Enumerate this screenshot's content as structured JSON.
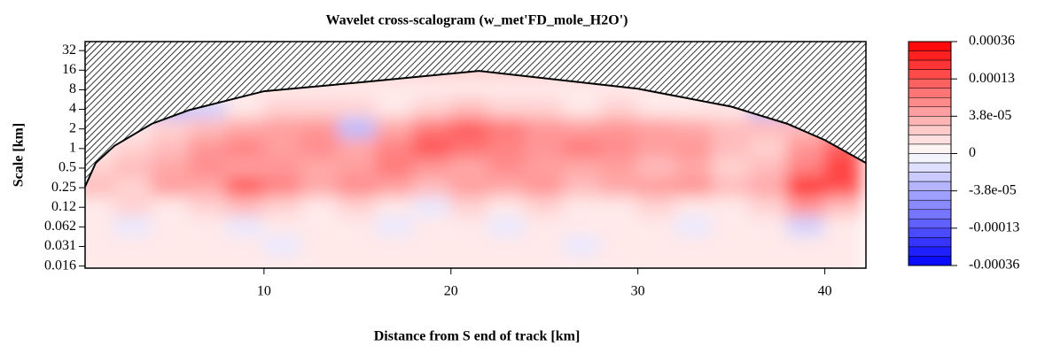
{
  "chart_data": {
    "type": "heatmap",
    "title": "Wavelet cross-scalogram (w_met'FD_mole_H2O')",
    "xlabel": "Distance from S end of track [km]",
    "ylabel": "Scale [km]",
    "log_y": true,
    "xlim": [
      0.43,
      42.2
    ],
    "xticks": [
      10,
      20,
      30,
      40
    ],
    "ylim": [
      0.0145,
      44
    ],
    "yticks": [
      32,
      16,
      8,
      4,
      2,
      1,
      0.5,
      0.25,
      {
        "value": 0.125,
        "label": "0.12"
      },
      {
        "value": 0.0625,
        "label": "0.062"
      },
      {
        "value": 0.03125,
        "label": "0.031"
      },
      {
        "value": 0.015625,
        "label": "0.016"
      }
    ],
    "x": [
      1,
      3,
      5,
      7,
      9,
      11,
      13,
      15,
      17,
      19,
      21,
      23,
      25,
      27,
      29,
      31,
      33,
      35,
      37,
      39,
      41
    ],
    "scales": [
      32,
      16,
      8,
      4,
      2,
      1,
      0.5,
      0.25,
      0.125,
      0.0625,
      0.03125,
      0.015625
    ],
    "z": [
      [
        2e-05,
        2e-05,
        2e-05,
        2e-05,
        2e-05,
        2e-05,
        2e-05,
        2e-05,
        2e-05,
        2e-05,
        2e-05,
        2e-05,
        2e-05,
        2e-05,
        2e-05,
        2e-05,
        2e-05,
        2e-05,
        2e-05,
        2e-05,
        2e-05
      ],
      [
        2e-05,
        2e-05,
        2e-05,
        2e-05,
        2e-05,
        2e-05,
        2e-05,
        2e-05,
        2e-05,
        2e-05,
        2e-05,
        2e-05,
        2e-05,
        2e-05,
        2e-05,
        2e-05,
        2e-05,
        2e-05,
        2e-05,
        2e-05,
        2e-05
      ],
      [
        1e-05,
        1e-05,
        1e-05,
        1e-05,
        1e-05,
        1e-05,
        1e-05,
        1e-05,
        1e-05,
        1e-05,
        1e-05,
        1e-05,
        1e-05,
        1e-05,
        1e-05,
        1e-05,
        1e-05,
        2e-05,
        3e-05,
        3e-05,
        3e-05
      ],
      [
        2e-05,
        -2e-05,
        -3e-05,
        -2e-05,
        1e-05,
        2e-05,
        2e-05,
        2e-05,
        1e-05,
        2e-05,
        3e-05,
        2e-05,
        2e-05,
        1e-05,
        2e-05,
        1e-05,
        1e-05,
        1e-05,
        -3e-05,
        -6e-05,
        -6e-05
      ],
      [
        1e-05,
        1e-05,
        2e-05,
        3e-05,
        4e-05,
        5e-05,
        6e-05,
        -3e-05,
        4e-05,
        9e-05,
        0.00012,
        9e-05,
        6e-05,
        5e-05,
        6e-05,
        5e-05,
        4e-05,
        3e-05,
        3e-05,
        3e-05,
        4e-05
      ],
      [
        1e-05,
        2e-05,
        3e-05,
        6e-05,
        8e-05,
        5e-05,
        7e-05,
        4e-05,
        8e-05,
        0.00013,
        0.0001,
        8e-05,
        6e-05,
        9e-05,
        7e-05,
        5e-05,
        6e-05,
        3e-05,
        2e-05,
        6e-05,
        0.00012
      ],
      [
        2e-05,
        3e-05,
        4e-05,
        7e-05,
        5e-05,
        6e-05,
        4e-05,
        5e-05,
        9e-05,
        6e-05,
        4e-05,
        7e-05,
        5e-05,
        4e-05,
        5e-05,
        3e-05,
        4e-05,
        2e-05,
        3e-05,
        8e-05,
        0.00018
      ],
      [
        3e-05,
        2e-05,
        5e-05,
        4e-05,
        0.00012,
        8e-05,
        4e-05,
        7e-05,
        5e-05,
        3e-05,
        5e-05,
        4e-05,
        6e-05,
        3e-05,
        4e-05,
        5e-05,
        6e-05,
        3e-05,
        4e-05,
        0.00022,
        0.00015
      ],
      [
        1e-05,
        2e-05,
        1e-05,
        2e-05,
        3e-05,
        2e-05,
        1e-05,
        2e-05,
        1e-05,
        -1e-05,
        2e-05,
        1e-05,
        2e-05,
        1e-05,
        1e-05,
        2e-05,
        1e-05,
        1e-05,
        2e-05,
        6e-05,
        3e-05
      ],
      [
        1e-05,
        -1e-05,
        1e-05,
        1e-05,
        -1e-05,
        1e-05,
        1e-05,
        1e-05,
        -1e-05,
        1e-05,
        1e-05,
        -1e-05,
        1e-05,
        1e-05,
        1e-05,
        1e-05,
        -1e-05,
        1e-05,
        1e-05,
        -2e-05,
        1e-05
      ],
      [
        1e-05,
        1e-05,
        1e-05,
        1e-05,
        1e-05,
        -1e-05,
        1e-05,
        1e-05,
        1e-05,
        1e-05,
        1e-05,
        1e-05,
        1e-05,
        -1e-05,
        1e-05,
        1e-05,
        1e-05,
        1e-05,
        1e-05,
        1e-05,
        1e-05
      ],
      [
        1e-05,
        1e-05,
        1e-05,
        1e-05,
        1e-05,
        1e-05,
        1e-05,
        1e-05,
        1e-05,
        1e-05,
        1e-05,
        1e-05,
        1e-05,
        1e-05,
        1e-05,
        1e-05,
        1e-05,
        1e-05,
        1e-05,
        1e-05,
        1e-05
      ]
    ],
    "coi": {
      "x": [
        0.43,
        1,
        2,
        4,
        6,
        10,
        15,
        21.5,
        30,
        35,
        38,
        40,
        42.2
      ],
      "scale": [
        0.26,
        0.6,
        1.1,
        2.4,
        3.9,
        7.6,
        10.3,
        15.6,
        8.3,
        4.4,
        2.4,
        1.35,
        0.6
      ]
    },
    "colorbar": {
      "ticks": [
        0.00036,
        0.00013,
        {
          "value": 3.8e-05,
          "label": "3.8e-05"
        },
        0,
        {
          "value": -3.8e-05,
          "label": "-3.8e-05"
        },
        -0.00013,
        -0.00036
      ],
      "low_color": "#0000ff",
      "mid_color": "#ffffff",
      "high_color": "#ff0000"
    }
  }
}
